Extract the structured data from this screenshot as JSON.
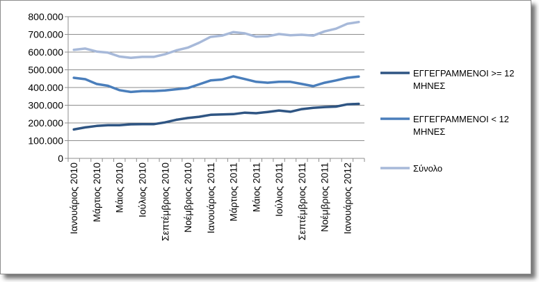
{
  "chart_data": {
    "type": "line",
    "title": "",
    "xlabel": "",
    "ylabel": "",
    "ylim": [
      0,
      800000
    ],
    "y_ticks": [
      "0",
      "100.000",
      "200.000",
      "300.000",
      "400.000",
      "500.000",
      "600.000",
      "700.000",
      "800.000"
    ],
    "x_tick_labels": [
      "Ιανουάριος 2010",
      "Μάρτιος 2010",
      "Μάιος 2010",
      "Ιούλιος 2010",
      "Σεπτέμβριος 2010",
      "Νοέμβριος 2010",
      "Ιανουάριος 2011",
      "Μάρτιος 2011",
      "Μάιος 2011",
      "Ιούλιος 2011",
      "Σεπτέμβριος 2011",
      "Νοέμβριος 2011",
      "Ιανουάριος 2012"
    ],
    "x_count": 26,
    "grid": "horizontal",
    "legend_position": "right",
    "series": [
      {
        "name": "ΕΓΓΕΓΡΑΜΜΕΝΟΙ >= 12 ΜΗΝΕΣ",
        "legend_lines": [
          "ΕΓΓΕΓΡΑΜΜΕΝΟΙ >= 12",
          "ΜΗΝΕΣ"
        ],
        "color": "#2f5583",
        "values": [
          163000,
          175000,
          183000,
          187000,
          187000,
          192000,
          193000,
          193000,
          203000,
          218000,
          228000,
          235000,
          246000,
          248000,
          250000,
          258000,
          255000,
          262000,
          270000,
          263000,
          278000,
          285000,
          290000,
          292000,
          305000,
          308000
        ]
      },
      {
        "name": "ΕΓΓΕΓΡΑΜΜΕΝΟΙ < 12 ΜΗΝΕΣ",
        "legend_lines": [
          "ΕΓΓΕΓΡΑΜΜΕΝΟΙ < 12",
          "ΜΗΝΕΣ"
        ],
        "color": "#4a7ebb",
        "values": [
          455000,
          447000,
          420000,
          410000,
          385000,
          375000,
          380000,
          380000,
          383000,
          390000,
          397000,
          418000,
          440000,
          445000,
          463000,
          448000,
          432000,
          427000,
          432000,
          432000,
          420000,
          408000,
          427000,
          440000,
          455000,
          462000
        ]
      },
      {
        "name": "Σύνολο",
        "legend_lines": [
          "Σύνολο"
        ],
        "color": "#a7b9d9",
        "values": [
          613000,
          620000,
          603000,
          597000,
          575000,
          568000,
          573000,
          573000,
          588000,
          610000,
          625000,
          653000,
          686000,
          693000,
          713000,
          706000,
          687000,
          689000,
          702000,
          695000,
          698000,
          693000,
          717000,
          732000,
          760000,
          770000
        ]
      }
    ]
  }
}
